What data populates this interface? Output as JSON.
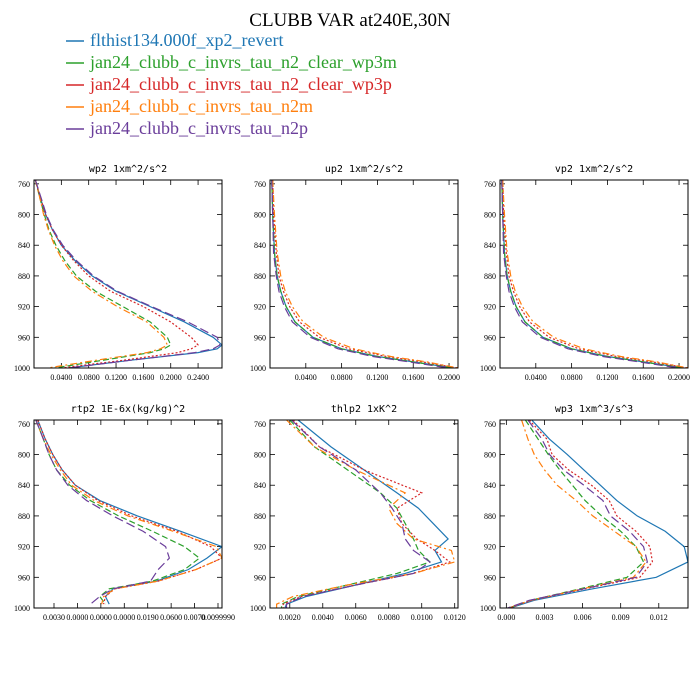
{
  "title": "CLUBB VAR at240E,30N",
  "legend": [
    {
      "name": "flthist134.000f_xp2_revert",
      "color": "#1f77b4",
      "dash": "solid"
    },
    {
      "name": "jan24_clubb_c_invrs_tau_n2_clear_wp3m",
      "color": "#2ca02c",
      "dash": "dashed"
    },
    {
      "name": "jan24_clubb_c_invrs_tau_n2_clear_wp3p",
      "color": "#d62728",
      "dash": "dotted"
    },
    {
      "name": "jan24_clubb_c_invrs_tau_n2m",
      "color": "#ff7f0e",
      "dash": "dashdot"
    },
    {
      "name": "jan24_clubb_c_invrs_tau_n2p",
      "color": "#6a3d9a",
      "dash": "longdash"
    }
  ],
  "chart_data": [
    {
      "type": "line",
      "title": "wp2  1xm^2/s^2",
      "y_ticks": [
        "760",
        "800",
        "840",
        "880",
        "920",
        "960",
        "1000"
      ],
      "x_ticks": [
        "0.0400",
        "0.0800",
        "0.1200",
        "0.1600",
        "0.2000",
        "0.2400"
      ],
      "xlim": [
        0,
        0.275
      ],
      "ylim": [
        1000,
        755
      ],
      "y": [
        755,
        780,
        800,
        820,
        840,
        860,
        880,
        900,
        920,
        940,
        960,
        970,
        975,
        980,
        990,
        1000
      ],
      "series": [
        {
          "name": "flthist134.000f_xp2_revert",
          "values": [
            0.002,
            0.01,
            0.017,
            0.027,
            0.04,
            0.06,
            0.085,
            0.12,
            0.17,
            0.22,
            0.262,
            0.275,
            0.268,
            0.24,
            0.14,
            0.05
          ]
        },
        {
          "name": "jan24_clubb_c_invrs_tau_n2_clear_wp3m",
          "values": [
            0.002,
            0.009,
            0.015,
            0.022,
            0.032,
            0.045,
            0.062,
            0.09,
            0.13,
            0.17,
            0.195,
            0.2,
            0.19,
            0.17,
            0.1,
            0.03
          ]
        },
        {
          "name": "jan24_clubb_c_invrs_tau_n2_clear_wp3p",
          "values": [
            0.002,
            0.01,
            0.017,
            0.027,
            0.04,
            0.058,
            0.08,
            0.112,
            0.16,
            0.2,
            0.23,
            0.24,
            0.23,
            0.21,
            0.13,
            0.04
          ]
        },
        {
          "name": "jan24_clubb_c_invrs_tau_n2m",
          "values": [
            0.002,
            0.009,
            0.014,
            0.021,
            0.03,
            0.042,
            0.058,
            0.085,
            0.122,
            0.165,
            0.19,
            0.195,
            0.185,
            0.165,
            0.09,
            0.02
          ]
        },
        {
          "name": "jan24_clubb_c_invrs_tau_n2p",
          "values": [
            0.002,
            0.011,
            0.018,
            0.028,
            0.042,
            0.062,
            0.087,
            0.122,
            0.172,
            0.225,
            0.268,
            0.272,
            0.262,
            0.235,
            0.14,
            0.05
          ]
        }
      ]
    },
    {
      "type": "line",
      "title": "up2  1xm^2/s^2",
      "y_ticks": [
        "760",
        "800",
        "840",
        "880",
        "920",
        "960",
        "1000"
      ],
      "x_ticks": [
        "0.0400",
        "0.0800",
        "0.1200",
        "0.1600",
        "0.2000"
      ],
      "xlim": [
        0,
        0.21
      ],
      "ylim": [
        1000,
        755
      ],
      "y": [
        755,
        800,
        850,
        880,
        900,
        920,
        940,
        960,
        975,
        985,
        992,
        1000
      ],
      "series": [
        {
          "name": "flthist134.000f_xp2_revert",
          "values": [
            0.002,
            0.003,
            0.005,
            0.008,
            0.012,
            0.018,
            0.028,
            0.048,
            0.08,
            0.12,
            0.16,
            0.205
          ]
        },
        {
          "name": "jan24_clubb_c_invrs_tau_n2_clear_wp3m",
          "values": [
            0.002,
            0.003,
            0.005,
            0.008,
            0.012,
            0.018,
            0.028,
            0.048,
            0.08,
            0.12,
            0.16,
            0.205
          ]
        },
        {
          "name": "jan24_clubb_c_invrs_tau_n2_clear_wp3p",
          "values": [
            0.003,
            0.004,
            0.007,
            0.01,
            0.015,
            0.022,
            0.033,
            0.055,
            0.088,
            0.13,
            0.17,
            0.21
          ]
        },
        {
          "name": "jan24_clubb_c_invrs_tau_n2m",
          "values": [
            0.003,
            0.005,
            0.008,
            0.012,
            0.017,
            0.025,
            0.037,
            0.06,
            0.094,
            0.135,
            0.175,
            0.21
          ]
        },
        {
          "name": "jan24_clubb_c_invrs_tau_n2p",
          "values": [
            0.002,
            0.003,
            0.004,
            0.007,
            0.01,
            0.016,
            0.025,
            0.045,
            0.076,
            0.115,
            0.155,
            0.2
          ]
        }
      ]
    },
    {
      "type": "line",
      "title": "vp2  1xm^2/s^2",
      "y_ticks": [
        "760",
        "800",
        "840",
        "880",
        "920",
        "960",
        "1000"
      ],
      "x_ticks": [
        "0.0400",
        "0.0800",
        "0.1200",
        "0.1600",
        "0.2000"
      ],
      "xlim": [
        0,
        0.21
      ],
      "ylim": [
        1000,
        755
      ],
      "y": [
        755,
        800,
        850,
        880,
        900,
        920,
        940,
        960,
        975,
        985,
        992,
        1000
      ],
      "series": [
        {
          "name": "flthist134.000f_xp2_revert",
          "values": [
            0.002,
            0.003,
            0.005,
            0.008,
            0.012,
            0.018,
            0.028,
            0.048,
            0.08,
            0.12,
            0.16,
            0.205
          ]
        },
        {
          "name": "jan24_clubb_c_invrs_tau_n2_clear_wp3m",
          "values": [
            0.002,
            0.003,
            0.005,
            0.008,
            0.012,
            0.018,
            0.028,
            0.048,
            0.08,
            0.12,
            0.16,
            0.205
          ]
        },
        {
          "name": "jan24_clubb_c_invrs_tau_n2_clear_wp3p",
          "values": [
            0.003,
            0.004,
            0.007,
            0.01,
            0.015,
            0.022,
            0.033,
            0.055,
            0.088,
            0.13,
            0.17,
            0.21
          ]
        },
        {
          "name": "jan24_clubb_c_invrs_tau_n2m",
          "values": [
            0.003,
            0.005,
            0.008,
            0.012,
            0.017,
            0.025,
            0.037,
            0.06,
            0.094,
            0.135,
            0.175,
            0.21
          ]
        },
        {
          "name": "jan24_clubb_c_invrs_tau_n2p",
          "values": [
            0.002,
            0.003,
            0.004,
            0.007,
            0.01,
            0.016,
            0.025,
            0.045,
            0.076,
            0.115,
            0.155,
            0.2
          ]
        }
      ]
    },
    {
      "type": "line",
      "title": "rtp2  1E-6x(kg/kg)^2",
      "y_ticks": [
        "760",
        "800",
        "840",
        "880",
        "920",
        "960",
        "1000"
      ],
      "x_ticks": [
        "0.0030",
        "0.0000",
        "0.0000",
        "0.0000",
        "0.0190",
        "0.0600",
        "0.0070",
        "0.0099990"
      ],
      "xlim": [
        0,
        1
      ],
      "ylim": [
        1000,
        755
      ],
      "y": [
        755,
        780,
        800,
        820,
        840,
        860,
        880,
        900,
        920,
        935,
        950,
        965,
        975,
        985,
        995
      ],
      "series": [
        {
          "name": "flthist134.000f_xp2_revert",
          "values": [
            0.02,
            0.06,
            0.1,
            0.15,
            0.22,
            0.35,
            0.55,
            0.78,
            1.0,
            0.92,
            0.82,
            0.65,
            0.42,
            0.38,
            0.4
          ]
        },
        {
          "name": "jan24_clubb_c_invrs_tau_n2_clear_wp3m",
          "values": [
            0.01,
            0.05,
            0.08,
            0.12,
            0.19,
            0.3,
            0.45,
            0.63,
            0.8,
            0.88,
            0.8,
            0.63,
            0.4,
            0.35,
            0.38
          ]
        },
        {
          "name": "jan24_clubb_c_invrs_tau_n2_clear_wp3p",
          "values": [
            0.02,
            0.06,
            0.1,
            0.15,
            0.22,
            0.34,
            0.52,
            0.76,
            0.94,
            1.0,
            0.86,
            0.66,
            0.43,
            0.38,
            0.37
          ]
        },
        {
          "name": "jan24_clubb_c_invrs_tau_n2m",
          "values": [
            0.01,
            0.05,
            0.09,
            0.14,
            0.2,
            0.32,
            0.5,
            0.74,
            0.97,
            1.0,
            0.86,
            0.66,
            0.43,
            0.37,
            0.36
          ]
        },
        {
          "name": "jan24_clubb_c_invrs_tau_n2p",
          "values": [
            0.01,
            0.05,
            0.08,
            0.12,
            0.18,
            0.28,
            0.42,
            0.58,
            0.7,
            0.72,
            0.66,
            0.62,
            0.42,
            0.35,
            0.3
          ]
        }
      ]
    },
    {
      "type": "line",
      "title": "thlp2  1xK^2",
      "y_ticks": [
        "760",
        "800",
        "840",
        "880",
        "920",
        "960",
        "1000"
      ],
      "x_ticks": [
        "0.0020",
        "0.0040",
        "0.0060",
        "0.0080",
        "0.0100",
        "0.0120"
      ],
      "xlim": [
        0.0008,
        0.0122
      ],
      "ylim": [
        1000,
        755
      ],
      "y": [
        755,
        790,
        820,
        850,
        870,
        890,
        910,
        925,
        940,
        955,
        970,
        985,
        995,
        1000
      ],
      "series": [
        {
          "name": "flthist134.000f_xp2_revert",
          "values": [
            0.0025,
            0.0045,
            0.0065,
            0.0085,
            0.0098,
            0.0107,
            0.0116,
            0.0108,
            0.0112,
            0.009,
            0.006,
            0.003,
            0.0018,
            0.0017
          ]
        },
        {
          "name": "jan24_clubb_c_invrs_tau_n2_clear_wp3m",
          "values": [
            0.002,
            0.0035,
            0.0055,
            0.0075,
            0.0085,
            0.009,
            0.0095,
            0.0098,
            0.0105,
            0.0085,
            0.0055,
            0.0025,
            0.0015,
            0.0015
          ]
        },
        {
          "name": "jan24_clubb_c_invrs_tau_n2_clear_wp3p",
          "values": [
            0.0022,
            0.0038,
            0.0065,
            0.01,
            0.0085,
            0.0088,
            0.0097,
            0.0108,
            0.0117,
            0.0095,
            0.006,
            0.0027,
            0.0016,
            0.0016
          ]
        },
        {
          "name": "jan24_clubb_c_invrs_tau_n2m",
          "values": [
            0.0018,
            0.0035,
            0.006,
            0.009,
            0.008,
            0.0085,
            0.0095,
            0.0118,
            0.012,
            0.0095,
            0.0055,
            0.0022,
            0.0012,
            0.0012
          ]
        },
        {
          "name": "jan24_clubb_c_invrs_tau_n2p",
          "values": [
            0.0021,
            0.0038,
            0.006,
            0.0075,
            0.0082,
            0.0088,
            0.009,
            0.0095,
            0.0105,
            0.0095,
            0.006,
            0.0028,
            0.0018,
            0.0018
          ]
        }
      ]
    },
    {
      "type": "line",
      "title": "wp3  1xm^3/s^3",
      "y_ticks": [
        "760",
        "800",
        "840",
        "880",
        "920",
        "960",
        "1000"
      ],
      "x_ticks": [
        "0.000",
        "0.003",
        "0.006",
        "0.009",
        "0.012"
      ],
      "xlim": [
        -0.0005,
        0.0143
      ],
      "ylim": [
        1000,
        755
      ],
      "y": [
        755,
        780,
        800,
        820,
        840,
        860,
        880,
        900,
        920,
        940,
        960,
        975,
        990,
        1000
      ],
      "series": [
        {
          "name": "flthist134.000f_xp2_revert",
          "values": [
            0.002,
            0.0034,
            0.0048,
            0.0061,
            0.0074,
            0.0087,
            0.0103,
            0.0125,
            0.014,
            0.0143,
            0.0118,
            0.0068,
            0.0022,
            0.0003
          ]
        },
        {
          "name": "jan24_clubb_c_invrs_tau_n2_clear_wp3m",
          "values": [
            0.0015,
            0.0025,
            0.0033,
            0.0042,
            0.0052,
            0.0062,
            0.0075,
            0.009,
            0.0102,
            0.0108,
            0.0095,
            0.0058,
            0.0019,
            0.0002
          ]
        },
        {
          "name": "jan24_clubb_c_invrs_tau_n2_clear_wp3p",
          "values": [
            0.0018,
            0.0032,
            0.0036,
            0.0049,
            0.0067,
            0.0081,
            0.0087,
            0.0102,
            0.0113,
            0.0115,
            0.0105,
            0.0062,
            0.002,
            0.0002
          ]
        },
        {
          "name": "jan24_clubb_c_invrs_tau_n2m",
          "values": [
            0.0012,
            0.0017,
            0.0022,
            0.003,
            0.004,
            0.0055,
            0.0068,
            0.0085,
            0.0102,
            0.011,
            0.01,
            0.006,
            0.0019,
            0.0001
          ]
        },
        {
          "name": "jan24_clubb_c_invrs_tau_n2p",
          "values": [
            0.0017,
            0.0028,
            0.0034,
            0.0045,
            0.0061,
            0.0076,
            0.0082,
            0.0097,
            0.0108,
            0.0111,
            0.0102,
            0.0061,
            0.0018,
            0.0001
          ]
        }
      ]
    }
  ]
}
